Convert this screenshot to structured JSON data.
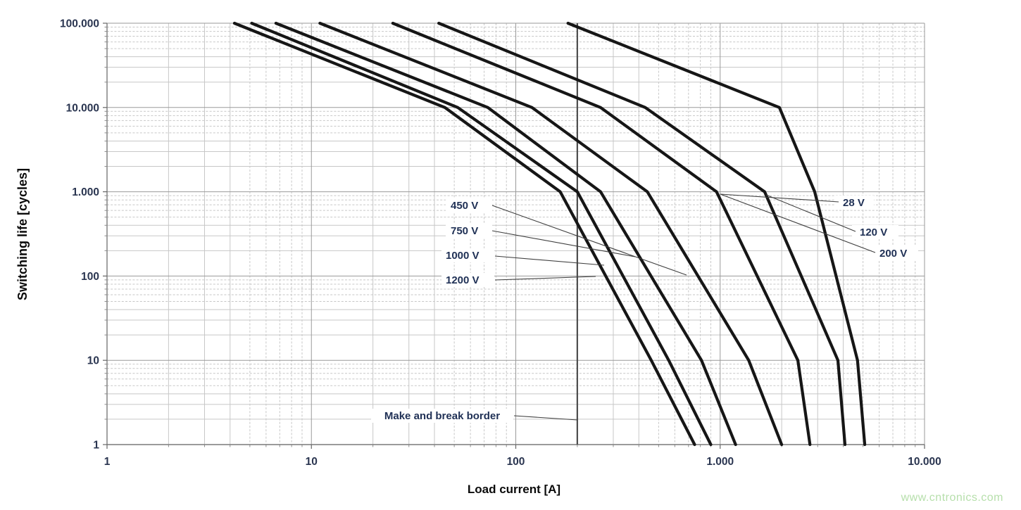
{
  "chart_data": {
    "type": "line",
    "title": "",
    "xlabel": "Load current [A]",
    "ylabel": "Switching life [cycles]",
    "x_scale": "log",
    "y_scale": "log",
    "xlim": [
      1,
      10000
    ],
    "ylim": [
      1,
      100000
    ],
    "grid": "log major + minor, both axes",
    "legend_position": "labels-with-leader-lines",
    "x_tick_labels": [
      "1",
      "10",
      "100",
      "1.000",
      "10.000"
    ],
    "y_tick_labels": [
      "1",
      "10",
      "100",
      "1.000",
      "10.000",
      "100.000"
    ],
    "series": [
      {
        "name": "1200 V",
        "points": [
          [
            4.2,
            100000
          ],
          [
            45,
            10000
          ],
          [
            165,
            1000
          ],
          [
            460,
            10
          ],
          [
            750,
            1
          ]
        ]
      },
      {
        "name": "1000 V",
        "points": [
          [
            5.1,
            100000
          ],
          [
            52,
            10000
          ],
          [
            200,
            1000
          ],
          [
            560,
            10
          ],
          [
            900,
            1
          ]
        ]
      },
      {
        "name": "750 V",
        "points": [
          [
            6.7,
            100000
          ],
          [
            73,
            10000
          ],
          [
            260,
            1000
          ],
          [
            810,
            10
          ],
          [
            1190,
            1
          ]
        ]
      },
      {
        "name": "450 V",
        "points": [
          [
            11,
            100000
          ],
          [
            120,
            10000
          ],
          [
            440,
            1000
          ],
          [
            1380,
            10
          ],
          [
            2000,
            1
          ]
        ]
      },
      {
        "name": "200 V",
        "points": [
          [
            25,
            100000
          ],
          [
            260,
            10000
          ],
          [
            960,
            1000
          ],
          [
            2400,
            10
          ],
          [
            2750,
            1
          ]
        ]
      },
      {
        "name": "120 V",
        "points": [
          [
            42,
            100000
          ],
          [
            430,
            10000
          ],
          [
            1650,
            1000
          ],
          [
            3770,
            10
          ],
          [
            4080,
            1
          ]
        ]
      },
      {
        "name": "28 V",
        "points": [
          [
            180,
            100000
          ],
          [
            1950,
            10000
          ],
          [
            2900,
            1000
          ],
          [
            4700,
            10
          ],
          [
            5100,
            1
          ]
        ]
      }
    ],
    "curve_labels": {
      "left": [
        {
          "text": "450 V"
        },
        {
          "text": "750 V"
        },
        {
          "text": "1000 V"
        },
        {
          "text": "1200 V"
        }
      ],
      "right": [
        {
          "text": "28 V"
        },
        {
          "text": "120 V"
        },
        {
          "text": "200 V"
        }
      ]
    },
    "border_annotation": {
      "label": "Make and break border",
      "x_amps": 200
    }
  },
  "colors": {
    "curve": "#161616",
    "label_text": "#1f3055",
    "tick_text": "#2a3550",
    "axis_title_text": "#0a0a0a",
    "grid_major": "#9a9a9a",
    "grid_minor": "#c7c7c7",
    "axis_line": "#7a7a7a",
    "border_line": "#4d4d4d",
    "leader_line": "#3f3f3f",
    "watermark": "#b6dfab"
  },
  "watermark": {
    "text": "www.cntronics.com"
  }
}
